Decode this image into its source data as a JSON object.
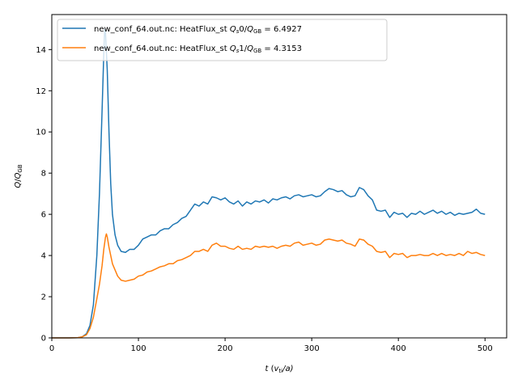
{
  "chart_data": {
    "type": "line",
    "xlabel": {
      "var": "t",
      "open": " (",
      "var2": "v",
      "sub": "ti",
      "tail": "/a)"
    },
    "ylabel": {
      "var": "Q",
      "slash": "/",
      "var2": "Q",
      "sub": "GB"
    },
    "xlim": [
      0,
      525
    ],
    "ylim": [
      0,
      15.7
    ],
    "xticks": [
      0,
      100,
      200,
      300,
      400,
      500
    ],
    "yticks": [
      0,
      2,
      4,
      6,
      8,
      10,
      12,
      14
    ],
    "grid": false,
    "legend_position": "upper-left",
    "series": [
      {
        "name_prefix": "new_conf_64.out.nc: HeatFlux_st ",
        "name_q": "Q",
        "name_s": "s",
        "name_idx": "0",
        "name_slash": "/",
        "name_q2": "Q",
        "name_gb": "GB",
        "name_value": " = 6.4927",
        "color": "#1f77b4",
        "points": [
          [
            0,
            0
          ],
          [
            20,
            0
          ],
          [
            30,
            0.01
          ],
          [
            35,
            0.05
          ],
          [
            40,
            0.2
          ],
          [
            44,
            0.6
          ],
          [
            48,
            1.6
          ],
          [
            52,
            4
          ],
          [
            55,
            7
          ],
          [
            58,
            11
          ],
          [
            60,
            13.8
          ],
          [
            61,
            15.0
          ],
          [
            62,
            14.8
          ],
          [
            64,
            13
          ],
          [
            66,
            10
          ],
          [
            68,
            7.5
          ],
          [
            70,
            6
          ],
          [
            73,
            5
          ],
          [
            76,
            4.5
          ],
          [
            80,
            4.2
          ],
          [
            85,
            4.15
          ],
          [
            90,
            4.3
          ],
          [
            95,
            4.3
          ],
          [
            100,
            4.5
          ],
          [
            105,
            4.8
          ],
          [
            110,
            4.9
          ],
          [
            115,
            5
          ],
          [
            120,
            5
          ],
          [
            125,
            5.2
          ],
          [
            130,
            5.3
          ],
          [
            135,
            5.3
          ],
          [
            140,
            5.5
          ],
          [
            145,
            5.6
          ],
          [
            150,
            5.8
          ],
          [
            155,
            5.9
          ],
          [
            160,
            6.2
          ],
          [
            165,
            6.5
          ],
          [
            170,
            6.4
          ],
          [
            175,
            6.6
          ],
          [
            180,
            6.5
          ],
          [
            185,
            6.85
          ],
          [
            190,
            6.8
          ],
          [
            195,
            6.7
          ],
          [
            200,
            6.8
          ],
          [
            205,
            6.6
          ],
          [
            210,
            6.5
          ],
          [
            215,
            6.65
          ],
          [
            220,
            6.4
          ],
          [
            225,
            6.6
          ],
          [
            230,
            6.5
          ],
          [
            235,
            6.65
          ],
          [
            240,
            6.6
          ],
          [
            245,
            6.7
          ],
          [
            250,
            6.55
          ],
          [
            255,
            6.75
          ],
          [
            260,
            6.7
          ],
          [
            265,
            6.8
          ],
          [
            270,
            6.85
          ],
          [
            275,
            6.75
          ],
          [
            280,
            6.9
          ],
          [
            285,
            6.95
          ],
          [
            290,
            6.85
          ],
          [
            295,
            6.9
          ],
          [
            300,
            6.95
          ],
          [
            305,
            6.85
          ],
          [
            310,
            6.9
          ],
          [
            315,
            7.1
          ],
          [
            320,
            7.25
          ],
          [
            325,
            7.2
          ],
          [
            330,
            7.1
          ],
          [
            335,
            7.15
          ],
          [
            340,
            6.95
          ],
          [
            345,
            6.85
          ],
          [
            350,
            6.9
          ],
          [
            355,
            7.3
          ],
          [
            360,
            7.2
          ],
          [
            365,
            6.9
          ],
          [
            370,
            6.7
          ],
          [
            375,
            6.2
          ],
          [
            380,
            6.15
          ],
          [
            385,
            6.2
          ],
          [
            390,
            5.85
          ],
          [
            395,
            6.1
          ],
          [
            400,
            6.0
          ],
          [
            405,
            6.05
          ],
          [
            410,
            5.85
          ],
          [
            415,
            6.05
          ],
          [
            420,
            6.0
          ],
          [
            425,
            6.15
          ],
          [
            430,
            6.0
          ],
          [
            435,
            6.1
          ],
          [
            440,
            6.2
          ],
          [
            445,
            6.05
          ],
          [
            450,
            6.15
          ],
          [
            455,
            6.0
          ],
          [
            460,
            6.1
          ],
          [
            465,
            5.95
          ],
          [
            470,
            6.05
          ],
          [
            475,
            6.0
          ],
          [
            480,
            6.05
          ],
          [
            485,
            6.1
          ],
          [
            490,
            6.25
          ],
          [
            495,
            6.05
          ],
          [
            500,
            6.0
          ]
        ]
      },
      {
        "name_prefix": "new_conf_64.out.nc: HeatFlux_st ",
        "name_q": "Q",
        "name_s": "s",
        "name_idx": "1",
        "name_slash": "/",
        "name_q2": "Q",
        "name_gb": "GB",
        "name_value": " = 4.3153",
        "color": "#ff7f0e",
        "points": [
          [
            0,
            0
          ],
          [
            20,
            0
          ],
          [
            30,
            0.01
          ],
          [
            35,
            0.05
          ],
          [
            40,
            0.15
          ],
          [
            44,
            0.45
          ],
          [
            48,
            1
          ],
          [
            52,
            1.9
          ],
          [
            55,
            2.6
          ],
          [
            58,
            3.5
          ],
          [
            60,
            4.3
          ],
          [
            62,
            4.9
          ],
          [
            63,
            5.05
          ],
          [
            64,
            4.9
          ],
          [
            66,
            4.4
          ],
          [
            68,
            4
          ],
          [
            70,
            3.6
          ],
          [
            73,
            3.3
          ],
          [
            76,
            3
          ],
          [
            80,
            2.8
          ],
          [
            85,
            2.75
          ],
          [
            90,
            2.8
          ],
          [
            95,
            2.85
          ],
          [
            100,
            3
          ],
          [
            105,
            3.05
          ],
          [
            110,
            3.2
          ],
          [
            115,
            3.25
          ],
          [
            120,
            3.35
          ],
          [
            125,
            3.45
          ],
          [
            130,
            3.5
          ],
          [
            135,
            3.6
          ],
          [
            140,
            3.6
          ],
          [
            145,
            3.75
          ],
          [
            150,
            3.8
          ],
          [
            155,
            3.9
          ],
          [
            160,
            4
          ],
          [
            165,
            4.2
          ],
          [
            170,
            4.2
          ],
          [
            175,
            4.3
          ],
          [
            180,
            4.2
          ],
          [
            185,
            4.5
          ],
          [
            190,
            4.6
          ],
          [
            195,
            4.45
          ],
          [
            200,
            4.45
          ],
          [
            205,
            4.35
          ],
          [
            210,
            4.3
          ],
          [
            215,
            4.45
          ],
          [
            220,
            4.3
          ],
          [
            225,
            4.35
          ],
          [
            230,
            4.3
          ],
          [
            235,
            4.45
          ],
          [
            240,
            4.4
          ],
          [
            245,
            4.45
          ],
          [
            250,
            4.4
          ],
          [
            255,
            4.45
          ],
          [
            260,
            4.35
          ],
          [
            265,
            4.45
          ],
          [
            270,
            4.5
          ],
          [
            275,
            4.45
          ],
          [
            280,
            4.6
          ],
          [
            285,
            4.65
          ],
          [
            290,
            4.5
          ],
          [
            295,
            4.55
          ],
          [
            300,
            4.6
          ],
          [
            305,
            4.5
          ],
          [
            310,
            4.55
          ],
          [
            315,
            4.75
          ],
          [
            320,
            4.8
          ],
          [
            325,
            4.75
          ],
          [
            330,
            4.7
          ],
          [
            335,
            4.75
          ],
          [
            340,
            4.6
          ],
          [
            345,
            4.55
          ],
          [
            350,
            4.45
          ],
          [
            355,
            4.8
          ],
          [
            360,
            4.75
          ],
          [
            365,
            4.55
          ],
          [
            370,
            4.45
          ],
          [
            375,
            4.2
          ],
          [
            380,
            4.15
          ],
          [
            385,
            4.2
          ],
          [
            390,
            3.9
          ],
          [
            395,
            4.1
          ],
          [
            400,
            4.05
          ],
          [
            405,
            4.1
          ],
          [
            410,
            3.9
          ],
          [
            415,
            4.0
          ],
          [
            420,
            4.0
          ],
          [
            425,
            4.05
          ],
          [
            430,
            4.0
          ],
          [
            435,
            4.0
          ],
          [
            440,
            4.1
          ],
          [
            445,
            4.0
          ],
          [
            450,
            4.1
          ],
          [
            455,
            4.0
          ],
          [
            460,
            4.05
          ],
          [
            465,
            4.0
          ],
          [
            470,
            4.1
          ],
          [
            475,
            4.0
          ],
          [
            480,
            4.2
          ],
          [
            485,
            4.1
          ],
          [
            490,
            4.15
          ],
          [
            495,
            4.05
          ],
          [
            500,
            4.0
          ]
        ]
      }
    ]
  }
}
